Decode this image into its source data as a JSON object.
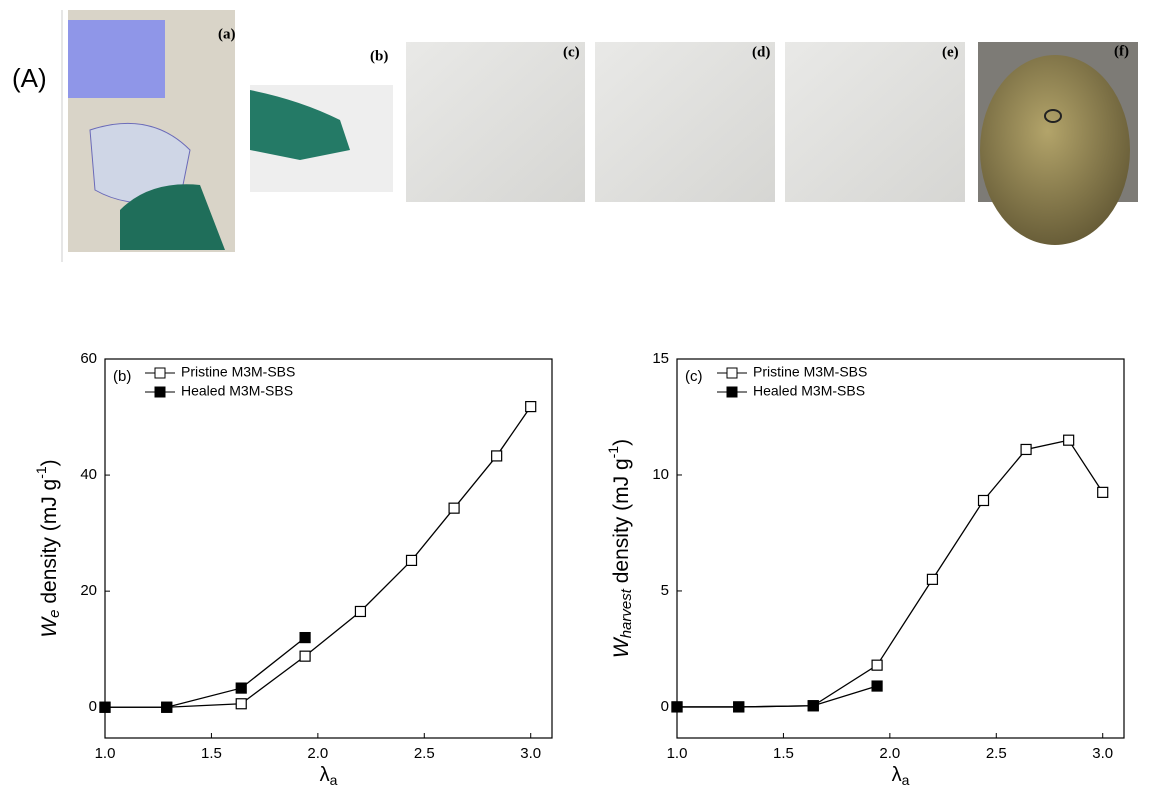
{
  "photo_panel": {
    "label": "(A)",
    "panels": [
      "(a)",
      "(b)",
      "(c)",
      "(d)",
      "(e)",
      "(f)"
    ]
  },
  "chart_data": [
    {
      "type": "line",
      "panel_label": "(b)",
      "xlabel": {
        "symbol": "λ",
        "subscript": "a"
      },
      "ylabel": {
        "symbol": "W",
        "subscript": "e",
        "text": " density (mJ g",
        "superscript": "-1",
        "close": ")"
      },
      "xlim": [
        1.0,
        3.1
      ],
      "ylim": [
        -5.3,
        60
      ],
      "xticks": [
        {
          "value": 1,
          "label": "1.0"
        },
        1.5,
        {
          "value": 2,
          "label": "2.0"
        },
        2.5,
        {
          "value": 3,
          "label": "3.0"
        }
      ],
      "yticks": [
        0,
        20,
        40,
        60
      ],
      "legend": "upper left",
      "series": [
        {
          "name": "Pristine M3M-SBS",
          "color": "#000000",
          "marker": "open-square",
          "x": [
            1.0,
            1.29,
            1.64,
            1.94,
            2.2,
            2.44,
            2.64,
            2.84,
            3.0
          ],
          "values": [
            0,
            0,
            0.6,
            8.8,
            16.5,
            25.3,
            34.3,
            43.3,
            51.8
          ]
        },
        {
          "name": "Healed M3M-SBS",
          "color": "#000000",
          "marker": "filled-square",
          "x": [
            1.0,
            1.29,
            1.64,
            1.94
          ],
          "values": [
            0,
            0,
            3.3,
            12
          ]
        }
      ]
    },
    {
      "type": "line",
      "panel_label": "(c)",
      "xlabel": {
        "symbol": "λ",
        "subscript": "a"
      },
      "ylabel": {
        "symbol": "W",
        "subscript": "harvest",
        "text": " density (mJ g",
        "superscript": "-1",
        "close": ")"
      },
      "xlim": [
        1.0,
        3.1
      ],
      "ylim": [
        -1.34,
        15
      ],
      "xticks": [
        {
          "value": 1,
          "label": "1.0"
        },
        1.5,
        {
          "value": 2,
          "label": "2.0"
        },
        2.5,
        {
          "value": 3,
          "label": "3.0"
        }
      ],
      "yticks": [
        0,
        5,
        10,
        15
      ],
      "legend": "upper left",
      "series": [
        {
          "name": "Pristine M3M-SBS",
          "color": "#000000",
          "marker": "open-square",
          "x": [
            1.0,
            1.29,
            1.64,
            1.94,
            2.2,
            2.44,
            2.64,
            2.84,
            3.0
          ],
          "values": [
            0,
            0,
            0.05,
            1.8,
            5.5,
            8.9,
            11.1,
            11.5,
            9.25
          ]
        },
        {
          "name": "Healed M3M-SBS",
          "color": "#000000",
          "marker": "filled-square",
          "x": [
            1.0,
            1.29,
            1.64,
            1.94
          ],
          "values": [
            0,
            0,
            0.05,
            0.9
          ]
        }
      ]
    }
  ]
}
